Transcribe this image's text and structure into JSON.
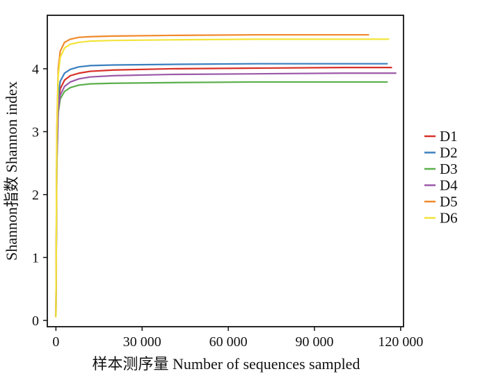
{
  "chart_data": {
    "type": "line",
    "title": "",
    "xlabel": "样本测序量  Number of sequences sampled",
    "ylabel": "Shannon指数  Shannon index",
    "xlim": [
      -3000,
      121000
    ],
    "ylim": [
      -0.1,
      4.85
    ],
    "xticks": [
      0,
      30000,
      60000,
      90000,
      120000
    ],
    "xtick_labels": [
      "0",
      "30 000",
      "60 000",
      "90 000",
      "120 000"
    ],
    "yticks": [
      0,
      1,
      2,
      3,
      4
    ],
    "ytick_labels": [
      "0",
      "1",
      "2",
      "3",
      "4"
    ],
    "grid": false,
    "legend_position": "right",
    "series": [
      {
        "name": "D1",
        "color": "#d73027",
        "points": [
          [
            0,
            0.05
          ],
          [
            300,
            2.6
          ],
          [
            800,
            3.45
          ],
          [
            1500,
            3.68
          ],
          [
            3000,
            3.82
          ],
          [
            5000,
            3.89
          ],
          [
            8000,
            3.93
          ],
          [
            12000,
            3.96
          ],
          [
            20000,
            3.98
          ],
          [
            40000,
            4.0
          ],
          [
            70000,
            4.01
          ],
          [
            100000,
            4.02
          ],
          [
            117000,
            4.02
          ]
        ]
      },
      {
        "name": "D2",
        "color": "#3a7fbf",
        "points": [
          [
            0,
            0.05
          ],
          [
            300,
            2.65
          ],
          [
            800,
            3.55
          ],
          [
            1500,
            3.8
          ],
          [
            3000,
            3.93
          ],
          [
            5000,
            3.99
          ],
          [
            8000,
            4.03
          ],
          [
            12000,
            4.05
          ],
          [
            20000,
            4.06
          ],
          [
            40000,
            4.07
          ],
          [
            70000,
            4.08
          ],
          [
            100000,
            4.08
          ],
          [
            115500,
            4.08
          ]
        ]
      },
      {
        "name": "D3",
        "color": "#5aaf4a",
        "points": [
          [
            0,
            0.05
          ],
          [
            300,
            2.45
          ],
          [
            800,
            3.3
          ],
          [
            1500,
            3.52
          ],
          [
            3000,
            3.64
          ],
          [
            5000,
            3.7
          ],
          [
            8000,
            3.74
          ],
          [
            12000,
            3.76
          ],
          [
            20000,
            3.77
          ],
          [
            40000,
            3.78
          ],
          [
            70000,
            3.79
          ],
          [
            100000,
            3.79
          ],
          [
            115500,
            3.79
          ]
        ]
      },
      {
        "name": "D4",
        "color": "#9b59a8",
        "points": [
          [
            0,
            0.05
          ],
          [
            300,
            2.5
          ],
          [
            800,
            3.35
          ],
          [
            1500,
            3.58
          ],
          [
            3000,
            3.72
          ],
          [
            5000,
            3.79
          ],
          [
            8000,
            3.84
          ],
          [
            12000,
            3.87
          ],
          [
            20000,
            3.89
          ],
          [
            40000,
            3.91
          ],
          [
            70000,
            3.92
          ],
          [
            100000,
            3.93
          ],
          [
            118500,
            3.93
          ]
        ]
      },
      {
        "name": "D5",
        "color": "#f0892a",
        "points": [
          [
            0,
            0.05
          ],
          [
            300,
            3.0
          ],
          [
            800,
            4.0
          ],
          [
            1500,
            4.28
          ],
          [
            3000,
            4.42
          ],
          [
            5000,
            4.47
          ],
          [
            8000,
            4.5
          ],
          [
            12000,
            4.51
          ],
          [
            20000,
            4.52
          ],
          [
            40000,
            4.53
          ],
          [
            70000,
            4.54
          ],
          [
            100000,
            4.54
          ],
          [
            109000,
            4.54
          ]
        ]
      },
      {
        "name": "D6",
        "color": "#f2e43a",
        "points": [
          [
            0,
            0.05
          ],
          [
            300,
            2.9
          ],
          [
            800,
            3.9
          ],
          [
            1500,
            4.18
          ],
          [
            3000,
            4.33
          ],
          [
            5000,
            4.39
          ],
          [
            8000,
            4.42
          ],
          [
            12000,
            4.44
          ],
          [
            20000,
            4.45
          ],
          [
            40000,
            4.46
          ],
          [
            70000,
            4.47
          ],
          [
            100000,
            4.47
          ],
          [
            116000,
            4.47
          ]
        ]
      }
    ]
  }
}
